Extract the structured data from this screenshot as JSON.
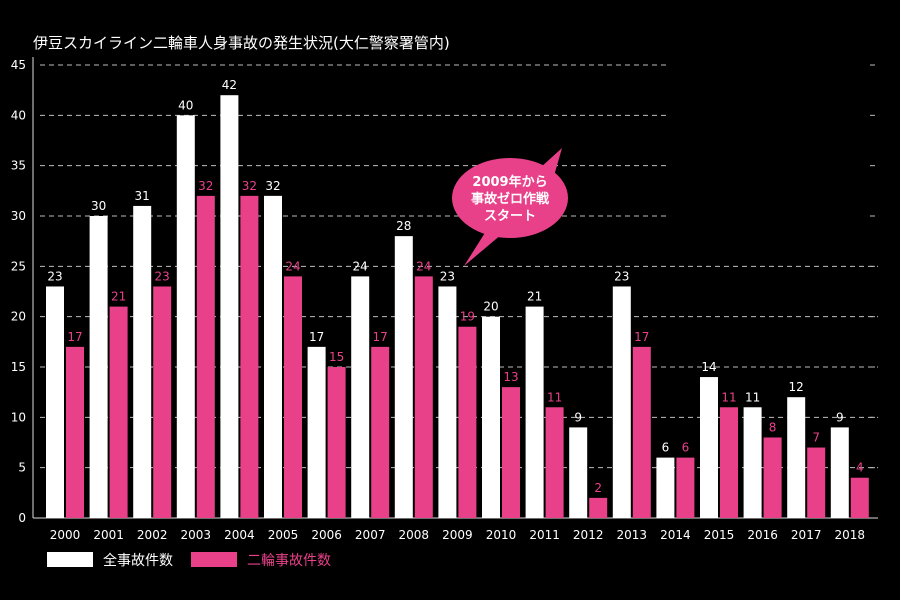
{
  "chart_data": {
    "type": "bar",
    "title": "伊豆スカイライン二輪車人身事故の発生状況(大仁警察署管内)",
    "categories": [
      "2000",
      "2001",
      "2002",
      "2003",
      "2004",
      "2005",
      "2006",
      "2007",
      "2008",
      "2009",
      "2010",
      "2011",
      "2012",
      "2013",
      "2014",
      "2015",
      "2016",
      "2017",
      "2018"
    ],
    "series": [
      {
        "name": "全事故件数",
        "color": "#ffffff",
        "values": [
          23,
          30,
          31,
          40,
          42,
          32,
          17,
          24,
          28,
          23,
          20,
          21,
          9,
          23,
          6,
          14,
          11,
          12,
          9
        ]
      },
      {
        "name": "二輪事故件数",
        "color": "#e8418a",
        "values": [
          17,
          21,
          23,
          32,
          32,
          24,
          15,
          17,
          24,
          19,
          13,
          11,
          2,
          17,
          6,
          11,
          8,
          7,
          4
        ]
      }
    ],
    "y_ticks": [
      0,
      5,
      10,
      15,
      20,
      25,
      30,
      35,
      40,
      45
    ],
    "ylim": [
      0,
      45
    ],
    "grid": "dashed",
    "legend": "bottom-left",
    "annotation": {
      "lines": [
        "2009年から",
        "事故ゼロ作戦",
        "スタート"
      ],
      "color": "#e8418a",
      "points_to": "2009"
    }
  }
}
